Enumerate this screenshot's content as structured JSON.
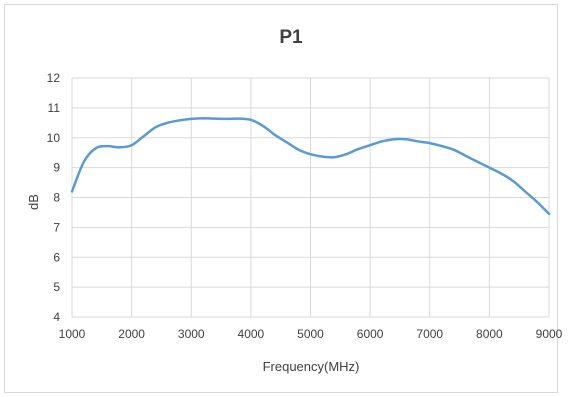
{
  "chart_data": {
    "type": "line",
    "title": "P1",
    "xlabel": "Frequency(MHz)",
    "ylabel": "dB",
    "xlim": [
      1000,
      9000
    ],
    "ylim": [
      4,
      12
    ],
    "xticks": [
      1000,
      2000,
      3000,
      4000,
      5000,
      6000,
      7000,
      8000,
      9000
    ],
    "yticks": [
      4,
      5,
      6,
      7,
      8,
      9,
      10,
      11,
      12
    ],
    "grid": true,
    "legend": "none",
    "series": [
      {
        "color": "#5b9bd5",
        "x": [
          1000,
          1200,
          1400,
          1600,
          1800,
          2000,
          2200,
          2400,
          2600,
          2800,
          3000,
          3200,
          3400,
          3600,
          3800,
          4000,
          4200,
          4400,
          4600,
          4800,
          5000,
          5200,
          5400,
          5600,
          5800,
          6000,
          6200,
          6400,
          6600,
          6800,
          7000,
          7200,
          7400,
          7600,
          7800,
          8000,
          8200,
          8400,
          8600,
          8800,
          9000
        ],
        "y": [
          8.2,
          9.2,
          9.65,
          9.72,
          9.68,
          9.75,
          10.05,
          10.35,
          10.5,
          10.58,
          10.63,
          10.65,
          10.64,
          10.63,
          10.64,
          10.6,
          10.4,
          10.1,
          9.85,
          9.6,
          9.45,
          9.37,
          9.35,
          9.45,
          9.62,
          9.75,
          9.88,
          9.95,
          9.95,
          9.88,
          9.82,
          9.72,
          9.6,
          9.4,
          9.2,
          9.0,
          8.8,
          8.55,
          8.2,
          7.85,
          7.45
        ]
      }
    ]
  }
}
